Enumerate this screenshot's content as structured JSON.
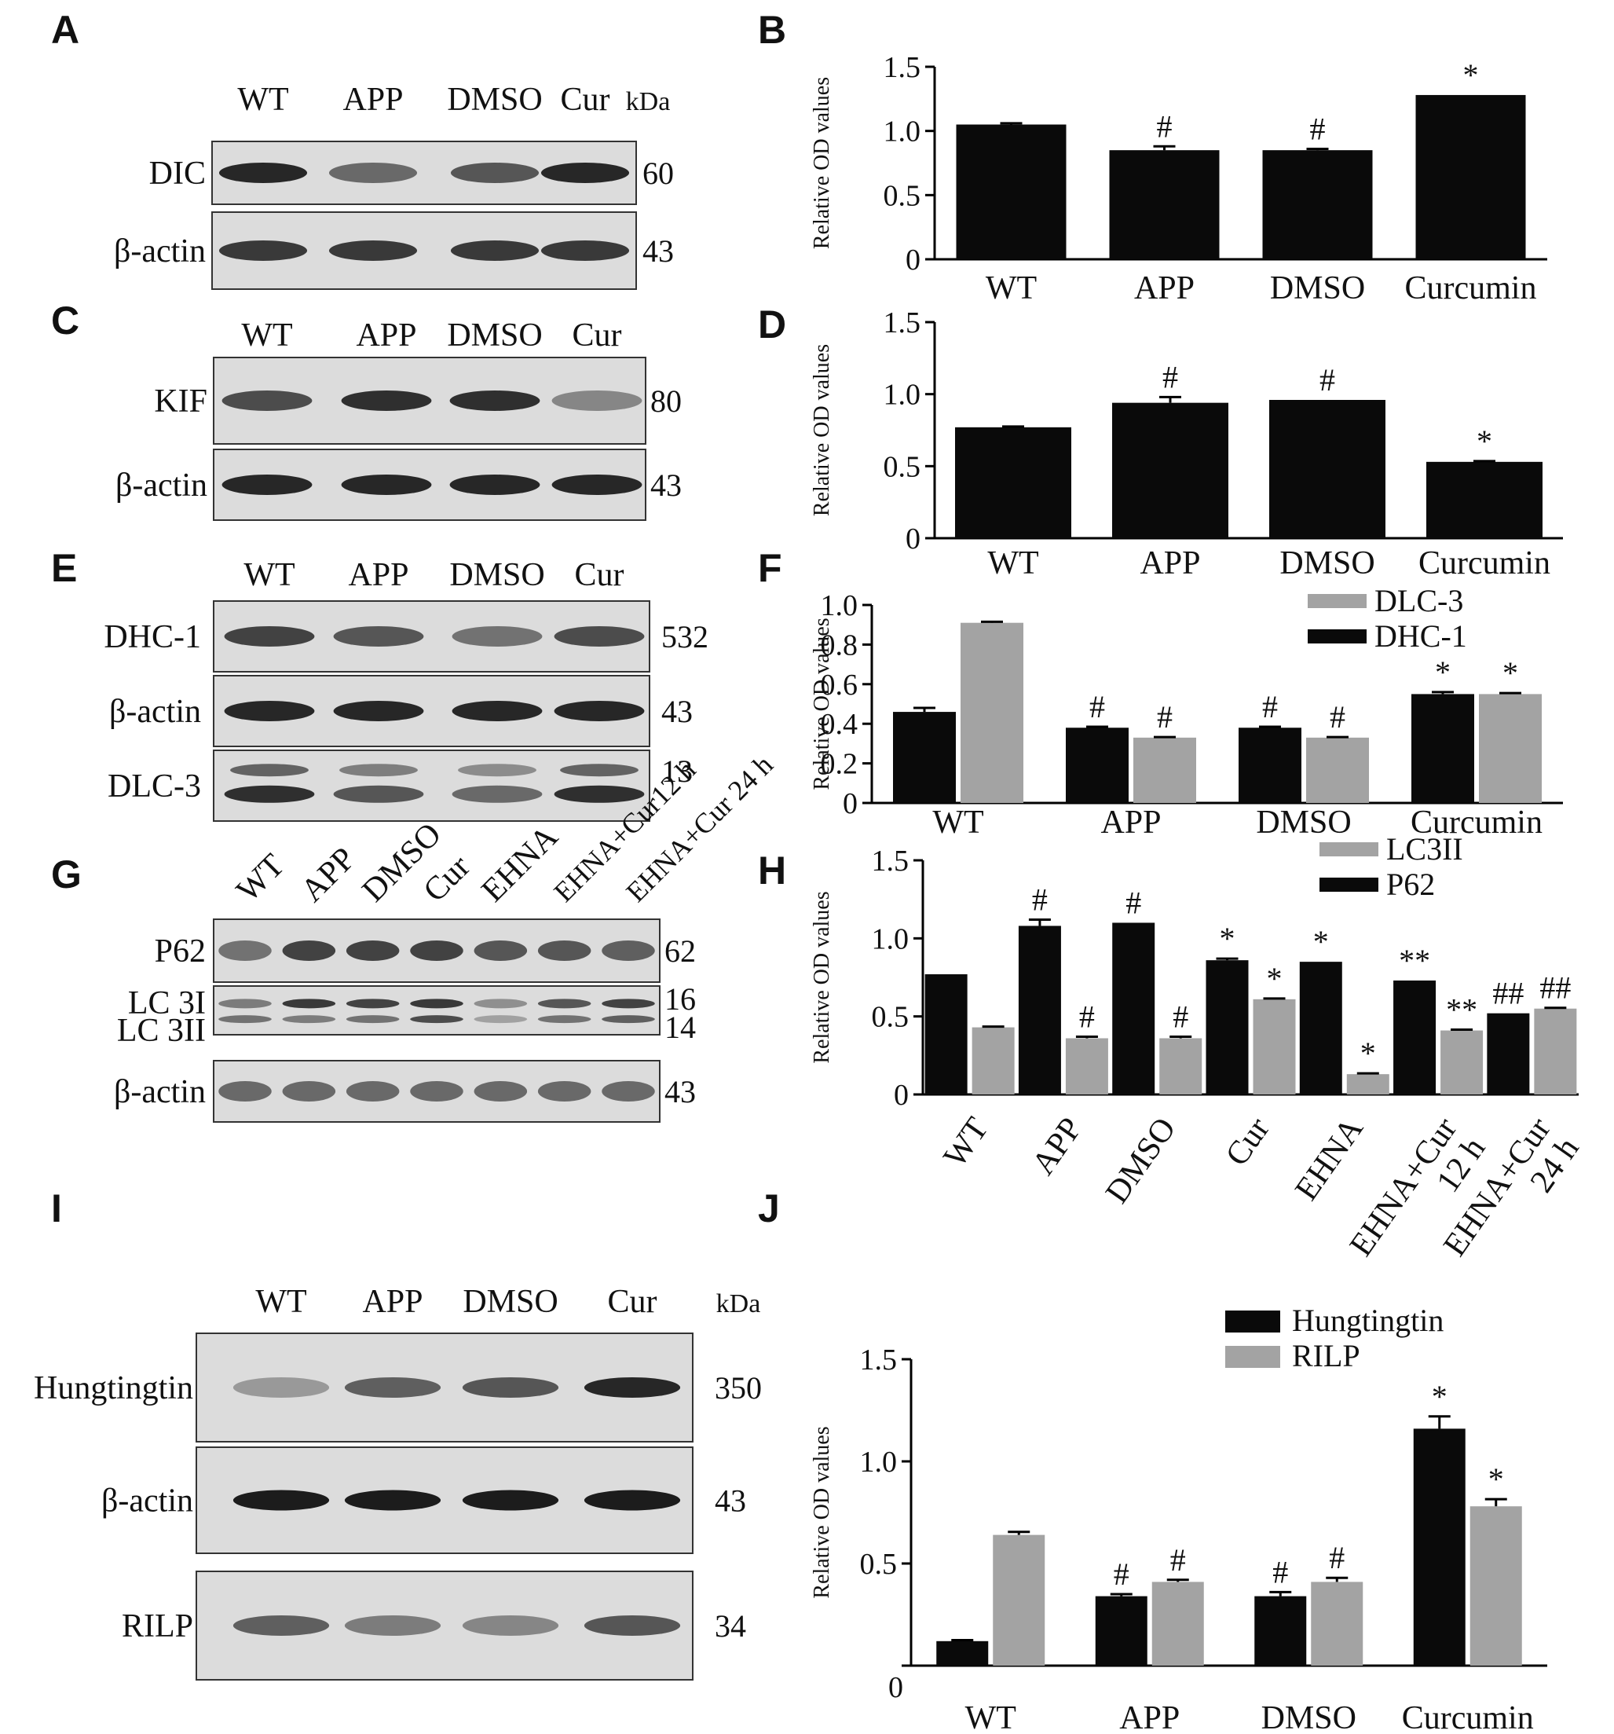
{
  "colors": {
    "black_series": "#0a0a0a",
    "gray_series": "#a3a3a3",
    "blot_bg": "#dcdcdc",
    "band": "#1c1c1c"
  },
  "blots": {
    "A": {
      "label": "A",
      "lanes": [
        "WT",
        "APP",
        "DMSO",
        "Cur"
      ],
      "kda_header": "kDa",
      "rows": [
        {
          "name": "DIC",
          "kda": "60",
          "intensity": [
            0.95,
            0.6,
            0.7,
            0.95
          ]
        },
        {
          "name": "β-actin",
          "kda": "43",
          "intensity": [
            0.85,
            0.85,
            0.85,
            0.85
          ]
        }
      ]
    },
    "C": {
      "label": "C",
      "lanes": [
        "WT",
        "APP",
        "DMSO",
        "Cur"
      ],
      "rows": [
        {
          "name": "KIF",
          "kda": "80",
          "intensity": [
            0.75,
            0.9,
            0.9,
            0.45
          ]
        },
        {
          "name": "β-actin",
          "kda": "43",
          "intensity": [
            0.95,
            0.95,
            0.95,
            0.95
          ]
        }
      ]
    },
    "E": {
      "label": "E",
      "lanes": [
        "WT",
        "APP",
        "DMSO",
        "Cur"
      ],
      "rows": [
        {
          "name": "DHC-1",
          "kda": "532",
          "intensity": [
            0.8,
            0.7,
            0.55,
            0.75
          ]
        },
        {
          "name": "β-actin",
          "kda": "43",
          "intensity": [
            0.95,
            0.95,
            0.95,
            0.95
          ]
        },
        {
          "name": "DLC-3",
          "kda": "13",
          "intensity": [
            0.9,
            0.7,
            0.6,
            0.9
          ]
        }
      ]
    },
    "G": {
      "label": "G",
      "lanes": [
        "WT",
        "APP",
        "DMSO",
        "Cur",
        "EHNA",
        "EHNA+Cur12 h",
        "EHNA+Cur 24 h"
      ],
      "rows": [
        {
          "name": "P62",
          "kda": "62",
          "intensity": [
            0.55,
            0.8,
            0.8,
            0.8,
            0.7,
            0.7,
            0.65
          ]
        },
        {
          "name": "LC 3I",
          "kda": "16",
          "intensity": [
            0.5,
            0.85,
            0.8,
            0.85,
            0.4,
            0.7,
            0.8
          ]
        },
        {
          "name": "LC 3II",
          "kda": "14",
          "intensity": [
            0.55,
            0.5,
            0.55,
            0.75,
            0.3,
            0.55,
            0.65
          ]
        },
        {
          "name": "β-actin",
          "kda": "43",
          "intensity": [
            0.6,
            0.6,
            0.6,
            0.6,
            0.6,
            0.6,
            0.6
          ]
        }
      ]
    },
    "I": {
      "label": "I",
      "lanes": [
        "WT",
        "APP",
        "DMSO",
        "Cur"
      ],
      "kda_header": "kDa",
      "rows": [
        {
          "name": "Hungtingtin",
          "kda": "350",
          "intensity": [
            0.35,
            0.65,
            0.7,
            0.95
          ]
        },
        {
          "name": "β-actin",
          "kda": "43",
          "intensity": [
            1,
            1,
            1,
            1
          ]
        },
        {
          "name": "RILP",
          "kda": "34",
          "intensity": [
            0.65,
            0.5,
            0.45,
            0.7
          ]
        }
      ]
    }
  },
  "chart_data": [
    {
      "panel": "B",
      "type": "bar",
      "ylabel": "Relative OD values",
      "ylim": [
        0,
        1.5
      ],
      "yticks": [
        "0",
        "0.5",
        "1.0",
        "1.5"
      ],
      "categories": [
        "WT",
        "APP",
        "DMSO",
        "Curcumin"
      ],
      "series": [
        {
          "values": [
            1.05,
            0.85,
            0.85,
            1.28
          ],
          "errors": [
            0.01,
            0.03,
            0.01,
            0.0
          ]
        }
      ],
      "annotations": [
        [
          "",
          "#",
          "#",
          "*"
        ]
      ]
    },
    {
      "panel": "D",
      "type": "bar",
      "ylabel": "Relative OD values",
      "ylim": [
        0,
        1.5
      ],
      "yticks": [
        "0",
        "0.5",
        "1.0",
        "1.5"
      ],
      "categories": [
        "WT",
        "APP",
        "DMSO",
        "Curcumin"
      ],
      "series": [
        {
          "values": [
            0.77,
            0.94,
            0.96,
            0.53
          ],
          "errors": [
            0.005,
            0.04,
            0.0,
            0.005
          ]
        }
      ],
      "annotations": [
        [
          "",
          "#",
          "#",
          "*"
        ]
      ]
    },
    {
      "panel": "F",
      "type": "bar",
      "ylabel": "Relative OD values",
      "ylim": [
        0,
        1.0
      ],
      "yticks": [
        "0",
        "0.2",
        "0.4",
        "0.6",
        "0.8",
        "1.0"
      ],
      "categories": [
        "WT",
        "APP",
        "DMSO",
        "Curcumin"
      ],
      "legend": [
        "DLC-3",
        "DHC-1"
      ],
      "legend_position": "top-right",
      "series": [
        {
          "name": "DHC-1",
          "color": "black",
          "values": [
            0.46,
            0.38,
            0.38,
            0.55
          ],
          "errors": [
            0.02,
            0.005,
            0.005,
            0.01
          ]
        },
        {
          "name": "DLC-3",
          "color": "gray",
          "values": [
            0.91,
            0.33,
            0.33,
            0.55
          ],
          "errors": [
            0.005,
            0.003,
            0.003,
            0.005
          ]
        }
      ],
      "annotations": [
        [
          "",
          "#",
          "#",
          "*"
        ],
        [
          "",
          "#",
          "#",
          "*"
        ]
      ]
    },
    {
      "panel": "H",
      "type": "bar",
      "ylabel": "Relative OD values",
      "ylim": [
        0,
        1.5
      ],
      "yticks": [
        "0",
        "0.5",
        "1.0",
        "1.5"
      ],
      "categories": [
        "WT",
        "APP",
        "DMSO",
        "Cur",
        "EHNA",
        "EHNA+Cur\n12 h",
        "EHNA+Cur\n24 h"
      ],
      "legend": [
        "LC3II",
        "P62"
      ],
      "legend_position": "top-right",
      "series": [
        {
          "name": "P62",
          "color": "black",
          "values": [
            0.77,
            1.08,
            1.1,
            0.86,
            0.85,
            0.73,
            0.52
          ],
          "errors": [
            0.0,
            0.04,
            0.0,
            0.01,
            0.0,
            0.0,
            0.0
          ]
        },
        {
          "name": "LC3II",
          "color": "gray",
          "values": [
            0.43,
            0.36,
            0.36,
            0.61,
            0.13,
            0.41,
            0.55
          ],
          "errors": [
            0.005,
            0.01,
            0.01,
            0.005,
            0.005,
            0.005,
            0.005
          ]
        }
      ],
      "annotations": [
        [
          "",
          "#",
          "#",
          "*",
          "*",
          "**",
          "##"
        ],
        [
          "",
          "#",
          "#",
          "*",
          "*",
          "**",
          "##"
        ]
      ]
    },
    {
      "panel": "J",
      "type": "bar",
      "ylabel": "Relative OD values",
      "ylim": [
        0,
        1.5
      ],
      "yticks": [
        "0",
        "0.5",
        "1.0",
        "1.5"
      ],
      "categories": [
        "WT",
        "APP",
        "DMSO",
        "Curcumin"
      ],
      "legend": [
        "Hungtingtin",
        "RILP"
      ],
      "legend_position": "top-right",
      "series": [
        {
          "name": "Hungtingtin",
          "color": "black",
          "values": [
            0.12,
            0.34,
            0.34,
            1.16
          ],
          "errors": [
            0.005,
            0.01,
            0.02,
            0.06
          ]
        },
        {
          "name": "RILP",
          "color": "gray",
          "values": [
            0.64,
            0.41,
            0.41,
            0.78
          ],
          "errors": [
            0.015,
            0.01,
            0.02,
            0.035
          ]
        }
      ],
      "annotations": [
        [
          "",
          "#",
          "#",
          "*"
        ],
        [
          "",
          "#",
          "#",
          "*"
        ]
      ]
    }
  ]
}
